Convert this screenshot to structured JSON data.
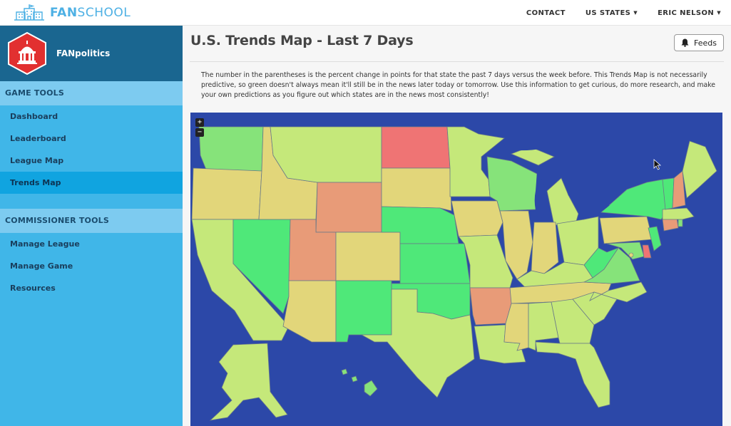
{
  "header": {
    "logo_text_bold": "FAN",
    "logo_text_light": "SCHOOL",
    "nav": {
      "contact": "CONTACT",
      "us_states": "US STATES",
      "user": "ERIC NELSON"
    }
  },
  "sidebar": {
    "brand_name": "FANpolitics",
    "game_tools_heading": "GAME TOOLS",
    "game_tools": [
      {
        "label": "Dashboard"
      },
      {
        "label": "Leaderboard"
      },
      {
        "label": "League Map"
      },
      {
        "label": "Trends Map"
      }
    ],
    "commissioner_heading": "COMMISSIONER TOOLS",
    "commissioner_tools": [
      {
        "label": "Manage League"
      },
      {
        "label": "Manage Game"
      },
      {
        "label": "Resources"
      }
    ]
  },
  "main": {
    "title": "U.S. Trends Map - Last 7 Days",
    "feeds_label": "Feeds",
    "description": "The number in the parentheses is the percent change in points for that state the past 7 days versus the week before. This Trends Map is not necessarily predictive, so green doesn't always mean it'll still be in the news later today or tomorrow. Use this information to get curious, do more research, and make your own predictions as you figure out which states are in the news most consistently!",
    "zoom_in": "+",
    "zoom_out": "−"
  },
  "colors": {
    "sidebar": "#40b6e8",
    "brand_bar": "#1a6690",
    "active_item": "#10a4e0",
    "map_water": "#2c48a8",
    "state_green_bright": "#4fe879",
    "state_green": "#86e37a",
    "state_lime": "#c5e87a",
    "state_yellow": "#e2d67a",
    "state_orange": "#e89b78",
    "state_red": "#ef7474"
  }
}
